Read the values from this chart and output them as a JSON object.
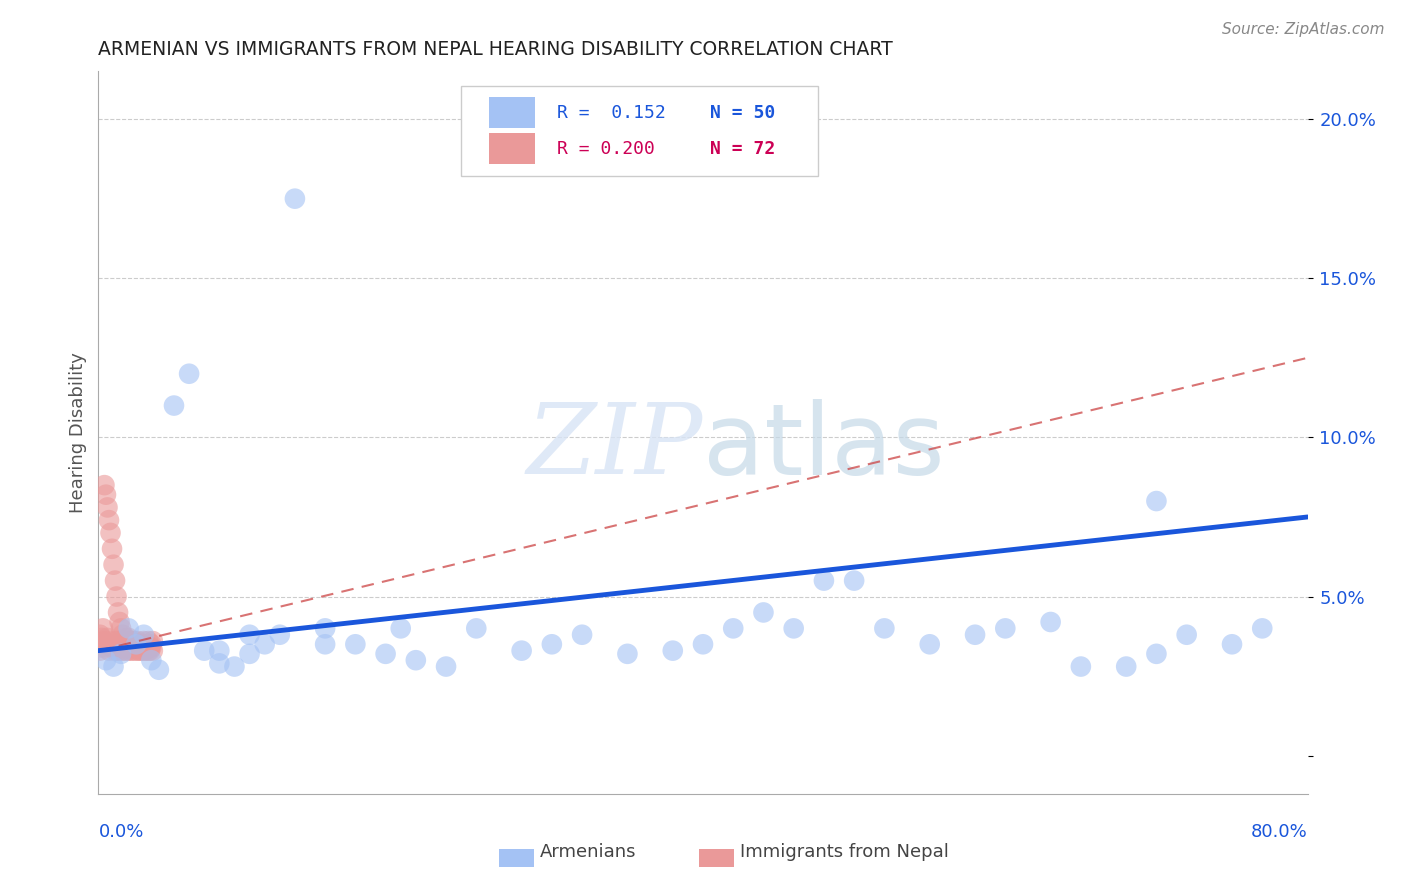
{
  "title": "ARMENIAN VS IMMIGRANTS FROM NEPAL HEARING DISABILITY CORRELATION CHART",
  "source": "Source: ZipAtlas.com",
  "ylabel": "Hearing Disability",
  "color_blue": "#a4c2f4",
  "color_blue_edge": "#6d9eeb",
  "color_pink": "#ea9999",
  "color_pink_edge": "#e06666",
  "color_blue_line": "#1a56db",
  "color_pink_line": "#cc4444",
  "color_blue_text": "#1a56db",
  "color_pink_text": "#cc0055",
  "color_axis_text": "#1a56db",
  "xlim": [
    0.0,
    0.8
  ],
  "ylim": [
    -0.012,
    0.215
  ],
  "yticks": [
    0.0,
    0.05,
    0.1,
    0.15,
    0.2
  ],
  "ytick_labels": [
    "",
    "5.0%",
    "10.0%",
    "15.0%",
    "20.0%"
  ],
  "legend_R1": "R =  0.152",
  "legend_N1": "N = 50",
  "legend_R2": "R = 0.200",
  "legend_N2": "N = 72",
  "arm_line_x": [
    0.0,
    0.8
  ],
  "arm_line_y": [
    0.033,
    0.075
  ],
  "nep_line_x": [
    0.0,
    0.8
  ],
  "nep_line_y": [
    0.033,
    0.125
  ],
  "armenians_x": [
    0.005,
    0.01,
    0.015,
    0.02,
    0.025,
    0.03,
    0.035,
    0.04,
    0.05,
    0.06,
    0.07,
    0.08,
    0.09,
    0.1,
    0.11,
    0.12,
    0.13,
    0.15,
    0.17,
    0.19,
    0.21,
    0.23,
    0.25,
    0.28,
    0.3,
    0.32,
    0.35,
    0.38,
    0.4,
    0.42,
    0.44,
    0.46,
    0.48,
    0.5,
    0.52,
    0.55,
    0.58,
    0.6,
    0.63,
    0.65,
    0.68,
    0.7,
    0.72,
    0.75,
    0.77,
    0.08,
    0.1,
    0.15,
    0.2,
    0.7
  ],
  "armenians_y": [
    0.03,
    0.028,
    0.032,
    0.04,
    0.035,
    0.038,
    0.03,
    0.027,
    0.11,
    0.12,
    0.033,
    0.029,
    0.028,
    0.032,
    0.035,
    0.038,
    0.175,
    0.04,
    0.035,
    0.032,
    0.03,
    0.028,
    0.04,
    0.033,
    0.035,
    0.038,
    0.032,
    0.033,
    0.035,
    0.04,
    0.045,
    0.04,
    0.055,
    0.055,
    0.04,
    0.035,
    0.038,
    0.04,
    0.042,
    0.028,
    0.028,
    0.032,
    0.038,
    0.035,
    0.04,
    0.033,
    0.038,
    0.035,
    0.04,
    0.08
  ],
  "nepal_x": [
    0.001,
    0.001,
    0.002,
    0.002,
    0.003,
    0.003,
    0.004,
    0.004,
    0.005,
    0.005,
    0.006,
    0.006,
    0.007,
    0.007,
    0.008,
    0.008,
    0.009,
    0.009,
    0.01,
    0.01,
    0.011,
    0.011,
    0.012,
    0.012,
    0.013,
    0.013,
    0.014,
    0.014,
    0.015,
    0.015,
    0.016,
    0.016,
    0.017,
    0.017,
    0.018,
    0.018,
    0.019,
    0.019,
    0.02,
    0.02,
    0.021,
    0.021,
    0.022,
    0.022,
    0.023,
    0.023,
    0.024,
    0.024,
    0.025,
    0.025,
    0.026,
    0.026,
    0.027,
    0.027,
    0.028,
    0.028,
    0.029,
    0.029,
    0.03,
    0.03,
    0.031,
    0.031,
    0.032,
    0.032,
    0.033,
    0.033,
    0.034,
    0.034,
    0.035,
    0.035,
    0.036,
    0.036
  ],
  "nepal_y": [
    0.033,
    0.038,
    0.034,
    0.037,
    0.035,
    0.04,
    0.085,
    0.036,
    0.082,
    0.035,
    0.078,
    0.037,
    0.074,
    0.033,
    0.07,
    0.035,
    0.065,
    0.034,
    0.06,
    0.036,
    0.055,
    0.033,
    0.05,
    0.036,
    0.045,
    0.033,
    0.042,
    0.035,
    0.04,
    0.033,
    0.038,
    0.035,
    0.036,
    0.033,
    0.037,
    0.034,
    0.036,
    0.033,
    0.037,
    0.034,
    0.035,
    0.033,
    0.036,
    0.034,
    0.035,
    0.033,
    0.036,
    0.034,
    0.035,
    0.033,
    0.036,
    0.034,
    0.035,
    0.033,
    0.034,
    0.033,
    0.035,
    0.034,
    0.036,
    0.033,
    0.034,
    0.033,
    0.035,
    0.034,
    0.036,
    0.033,
    0.034,
    0.033,
    0.035,
    0.034,
    0.036,
    0.033
  ]
}
